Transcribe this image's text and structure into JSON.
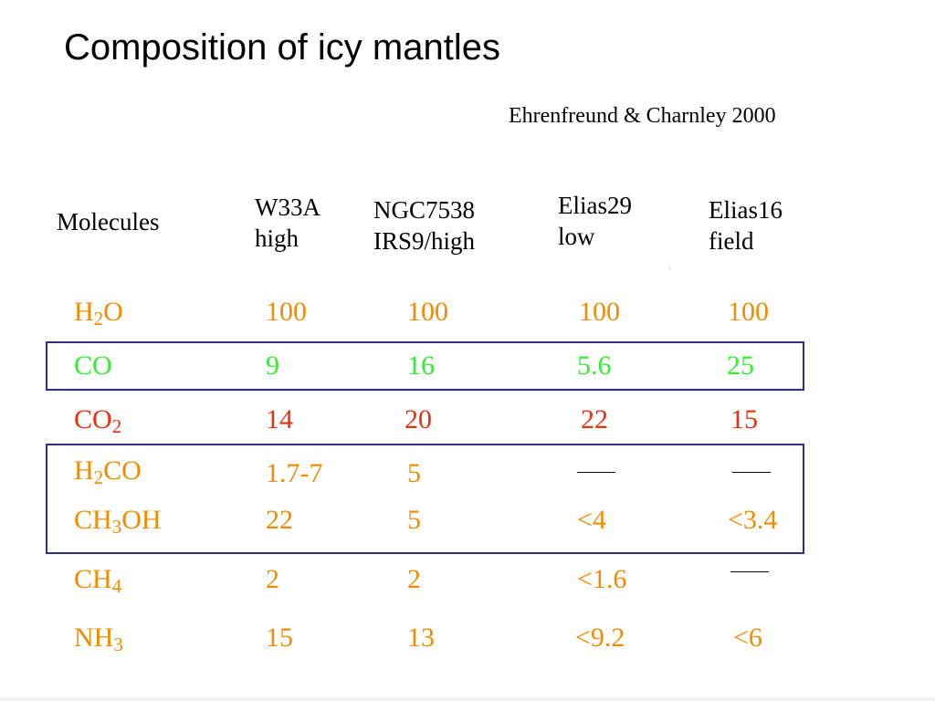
{
  "slide": {
    "title": "Composition of icy mantles",
    "citation": "Ehrenfreund & Charnley 2000"
  },
  "colors": {
    "orange": "#f08c00",
    "green": "#33ee33",
    "red": "#e83010",
    "box_border": "#2d2f8c",
    "text": "#000000"
  },
  "table": {
    "header": {
      "molecules": "Molecules",
      "col1_line1": "W33A",
      "col1_line2": "high",
      "col2_line1": "NGC7538",
      "col2_line2": "IRS9/high",
      "col3_line1": "Elias29",
      "col3_line2": "low",
      "col4_line1": "Elias16",
      "col4_line2": "field"
    },
    "rows": [
      {
        "mol_base": "H",
        "mol_sub": "2",
        "mol_tail": "O",
        "values": [
          "100",
          "100",
          "100",
          "100"
        ],
        "color": "orange"
      },
      {
        "mol_base": "CO",
        "mol_sub": "",
        "mol_tail": "",
        "values": [
          "9",
          "16",
          "5.6",
          "25"
        ],
        "color": "green"
      },
      {
        "mol_base": "CO",
        "mol_sub": "2",
        "mol_tail": "",
        "values": [
          "14",
          "20",
          "22",
          "15"
        ],
        "color": "red"
      },
      {
        "mol_base": "H",
        "mol_sub": "2",
        "mol_tail": "CO",
        "values": [
          "1.7-7",
          "5",
          "—",
          "—"
        ],
        "color": "orange"
      },
      {
        "mol_base": "CH",
        "mol_sub": "3",
        "mol_tail": "OH",
        "values": [
          "22",
          "5",
          "<4",
          "<3.4"
        ],
        "color": "orange"
      },
      {
        "mol_base": "CH",
        "mol_sub": "4",
        "mol_tail": "",
        "values": [
          "2",
          "2",
          "<1.6",
          "—"
        ],
        "color": "orange"
      },
      {
        "mol_base": "NH",
        "mol_sub": "3",
        "mol_tail": "",
        "values": [
          "15",
          "13",
          "<9.2",
          "<6"
        ],
        "color": "orange"
      }
    ]
  }
}
